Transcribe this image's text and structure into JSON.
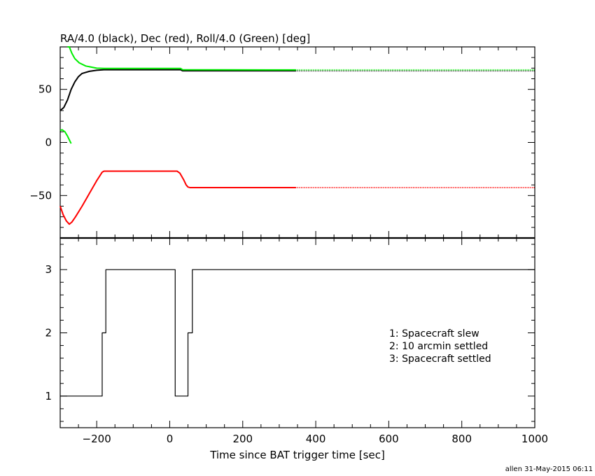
{
  "chart_data": [
    {
      "type": "line",
      "title": "RA/4.0 (black), Dec (red), Roll/4.0 (Green) [deg]",
      "xlim": [
        -300,
        1000
      ],
      "ylim": [
        -90,
        90
      ],
      "yticks": [
        -50,
        0,
        50
      ],
      "series": [
        {
          "color": "#000000",
          "points": [
            [
              -300,
              30
            ],
            [
              -290,
              33
            ],
            [
              -280,
              40
            ],
            [
              -270,
              50
            ],
            [
              -260,
              57
            ],
            [
              -250,
              62
            ],
            [
              -240,
              65
            ],
            [
              -220,
              67
            ],
            [
              -200,
              68
            ],
            [
              -180,
              68.5
            ],
            [
              30,
              68.5
            ],
            [
              35,
              67.5
            ],
            [
              345,
              67.5
            ]
          ],
          "dotted_to": 1000
        },
        {
          "color": "#ff0000",
          "points": [
            [
              -300,
              -60
            ],
            [
              -292,
              -68
            ],
            [
              -283,
              -74
            ],
            [
              -275,
              -77
            ],
            [
              -268,
              -75
            ],
            [
              -258,
              -70
            ],
            [
              -240,
              -60
            ],
            [
              -220,
              -48
            ],
            [
              -200,
              -36
            ],
            [
              -185,
              -28
            ],
            [
              -180,
              -27
            ],
            [
              20,
              -27
            ],
            [
              28,
              -29
            ],
            [
              38,
              -35
            ],
            [
              45,
              -40
            ],
            [
              50,
              -42
            ],
            [
              55,
              -42.5
            ],
            [
              345,
              -42.5
            ]
          ],
          "dotted_to": 1000
        },
        {
          "color": "#00ee00",
          "points": [
            [
              -280,
              93
            ],
            [
              -275,
              90
            ],
            [
              -268,
              84
            ],
            [
              -260,
              79
            ],
            [
              -248,
              75
            ],
            [
              -230,
              72
            ],
            [
              -200,
              70
            ],
            [
              -180,
              69.7
            ],
            [
              30,
              69.7
            ],
            [
              35,
              68.5
            ],
            [
              345,
              68.3
            ]
          ],
          "dotted_to": 1000
        },
        {
          "color": "#00ee00",
          "points": [
            [
              -300,
              11
            ],
            [
              -295,
              12
            ],
            [
              -287,
              10
            ],
            [
              -280,
              6
            ],
            [
              -273,
              1
            ],
            [
              -270,
              -1
            ]
          ]
        }
      ]
    },
    {
      "type": "line",
      "step": true,
      "xlim": [
        -300,
        1000
      ],
      "ylim": [
        0.5,
        3.5
      ],
      "xticks": [
        -200,
        0,
        200,
        400,
        600,
        800,
        1000
      ],
      "yticks": [
        1,
        2,
        3
      ],
      "xlabel": "Time since BAT trigger time [sec]",
      "series": [
        {
          "color": "#000000",
          "points": [
            [
              -300,
              1
            ],
            [
              -185,
              1
            ],
            [
              -185,
              2
            ],
            [
              -175,
              2
            ],
            [
              -175,
              3
            ],
            [
              15,
              3
            ],
            [
              15,
              1
            ],
            [
              50,
              1
            ],
            [
              50,
              2
            ],
            [
              62,
              2
            ],
            [
              62,
              3
            ],
            [
              1000,
              3
            ]
          ]
        }
      ],
      "annotations": [
        "1: Spacecraft slew",
        "2: 10 arcmin settled",
        "3: Spacecraft settled"
      ]
    }
  ],
  "footer": "allen 31-May-2015 06:11"
}
